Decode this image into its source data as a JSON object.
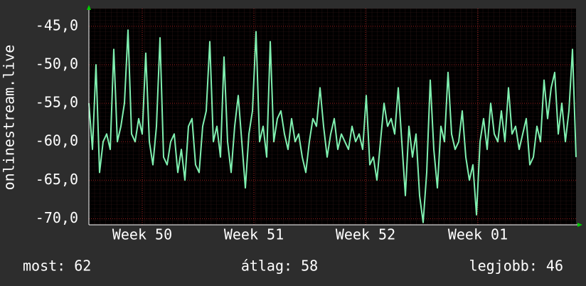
{
  "chart_data": {
    "type": "line",
    "y_label": "onlinestream.live",
    "ylim": [
      -70.8,
      -42.7
    ],
    "yticks": [
      {
        "value": -45,
        "label": "-45,0"
      },
      {
        "value": -50,
        "label": "-50,0"
      },
      {
        "value": -55,
        "label": "-55,0"
      },
      {
        "value": -60,
        "label": "-60,0"
      },
      {
        "value": -65,
        "label": "-65,0"
      },
      {
        "value": -70,
        "label": "-70,0"
      }
    ],
    "xlim": [
      0,
      137
    ],
    "xticks": [
      {
        "value": 15,
        "label": "Week 50"
      },
      {
        "value": 46.4,
        "label": "Week 51"
      },
      {
        "value": 77.8,
        "label": "Week 52"
      },
      {
        "value": 109.4,
        "label": "Week 01"
      }
    ],
    "grid": true,
    "color": "#80f0b0",
    "values": [
      -55,
      -61,
      -50,
      -64,
      -60,
      -59,
      -61,
      -48,
      -60,
      -58,
      -55,
      -45.5,
      -59,
      -60,
      -57,
      -59,
      -48.5,
      -60,
      -63,
      -58,
      -46.5,
      -62,
      -63,
      -60,
      -59,
      -64,
      -61,
      -65,
      -58,
      -57,
      -63,
      -64,
      -58,
      -56,
      -47,
      -60,
      -58,
      -62,
      -49,
      -60,
      -64,
      -58,
      -54,
      -60,
      -66,
      -59,
      -56,
      -45.7,
      -60,
      -58,
      -62,
      -47,
      -60,
      -57,
      -56,
      -59,
      -61,
      -57,
      -60,
      -59,
      -62,
      -64,
      -60,
      -57,
      -58,
      -53,
      -58,
      -62,
      -59,
      -57,
      -61,
      -59,
      -60,
      -61,
      -58,
      -60,
      -59,
      -61,
      -54,
      -63,
      -62,
      -65,
      -60,
      -55,
      -58,
      -57,
      -59,
      -53,
      -60,
      -67,
      -58,
      -62,
      -59,
      -67,
      -70.5,
      -64,
      -52,
      -61,
      -66,
      -58,
      -60,
      -51,
      -59,
      -61,
      -60,
      -56,
      -62,
      -65,
      -63,
      -69.5,
      -60,
      -57,
      -61,
      -55,
      -59,
      -60,
      -56,
      -60,
      -53,
      -59,
      -58,
      -61,
      -59,
      -57,
      -63,
      -62,
      -58,
      -60,
      -52,
      -57,
      -53,
      -51,
      -59,
      -55,
      -60,
      -56,
      -48,
      -62
    ],
    "footer": [
      "most: 62",
      "átlag: 58",
      "legjobb: 46"
    ]
  }
}
